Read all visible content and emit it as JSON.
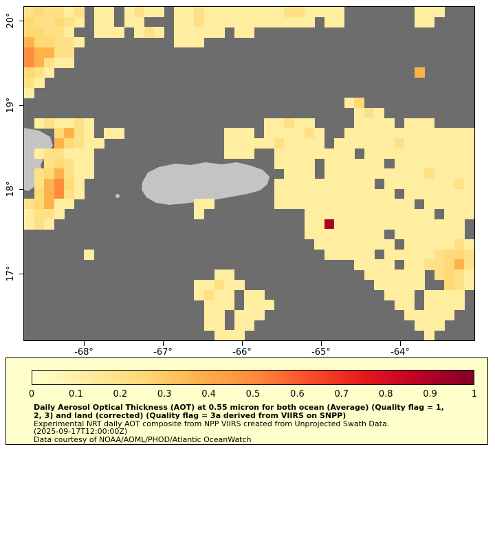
{
  "map": {
    "background_color": "#6d6d6d",
    "land_color": "#c4c4c4",
    "frame_color": "#000000",
    "y_axis": {
      "ticks": [
        {
          "label": "20°",
          "value": 20
        },
        {
          "label": "19°",
          "value": 19
        },
        {
          "label": "18°",
          "value": 18
        },
        {
          "label": "17°",
          "value": 17
        }
      ]
    },
    "x_axis": {
      "ticks": [
        {
          "label": "-68°",
          "value": -68
        },
        {
          "label": "-67°",
          "value": -67
        },
        {
          "label": "-66°",
          "value": -66
        },
        {
          "label": "-65°",
          "value": -65
        },
        {
          "label": "-64°",
          "value": -64
        }
      ]
    },
    "grid": {
      "cols": 45,
      "rows": 33,
      "palette": {
        "b": "#ffeda0",
        "c": "#fee187",
        "d": "#fed976",
        "e": "#feb24c",
        "f": "#fd8d3c",
        "r": "#b10026"
      },
      "rows_data": [
        "cdccbc.bb.bcbb.bbcbbbbbbbbccbbbb.......bbb...",
        "dccdcb.bb.bb...bbcbbbbbbbbbbb.bb.......bb....",
        "ddccb..bbb.bcb.bbbbb.bb......................",
        "eddccb.........bbb...........................",
        "feecc........................................",
        "fecbb........................................",
        "dcb....................................e.....",
        "cb...........................................",
        "b............................................",
        "................................bd...........",
        ".................................bcb.........",
        ".bcbbcb.................bbcbb....bbbb.bbb....",
        "...decb.bb..........bbb.bbbbcb..bbbbbbbbbbbbb",
        "...edcbb............bbbbbcbbbb.bbbbbbcbbbbbbb",
        ".bccbbb.............bbb..bbbbbbbb.bbbbbbbbbbb",
        "..cdcbb..................bbbb.bbbbbb.bbbbbbbb",
        ".cdecbb...................bbb.bbbbbbbbbbcbbbb",
        ".cefdb...................bbbbbbbbbb.bbbbbbbcb",
        ".defcb...................bbbbbbbbbbbb.bbbbbbb",
        "cdebb............bb......bbbbbbbbbbbbbb.bbbbb",
        "bccb.............b..........bbbbbbbbbbbbb.bbb",
        "bcb.........................bbrbbbbbbbbbbbbb.",
        "............................bbbbbbbb.bbbbbbb.",
        ".............................bbbbbbbb.bbbbbcb",
        "......b.......................bbbbb.bbbbbcddc",
        ".................................bbbb.bbccdec",
        "...................bb.............bbbbbb.cdcb",
        ".................bbcbb.............bbbbb..dcb",
        ".................bcbb.bb............bbb.bbbb.",
        "..................bbb.bbb............bb.bbbb.",
        "..................bb.bbb..............bbbbb..",
        "..................bb.bb................bbb...",
        "...................bbb..................b...."
      ]
    }
  },
  "colorbar": {
    "background": "#ffffcc",
    "tick_labels": [
      "0",
      "0.1",
      "0.2",
      "0.3",
      "0.4",
      "0.5",
      "0.6",
      "0.7",
      "0.8",
      "0.9",
      "1"
    ],
    "gradient_stops": [
      "#ffffcc",
      "#ffeda0",
      "#fed976",
      "#feb24c",
      "#fd8d3c",
      "#fc4e2a",
      "#e31a1c",
      "#bd0026",
      "#800026"
    ]
  },
  "legend": {
    "title_lines": [
      "Daily Aerosol Optical Thickness (AOT) at 0.55 micron for both ocean (Average) (Quality flag = 1,",
      "2, 3) and land (corrected) (Quality flag = 3a derived from VIIRS on SNPP)"
    ],
    "description_lines": [
      "Experimental NRT daily AOT composite from NPP VIIRS created from Unprojected Swath Data.",
      "(2025-09-17T12:00:00Z)",
      "Data courtesy of NOAA/AOML/PHOD/Atlantic OceanWatch"
    ]
  }
}
